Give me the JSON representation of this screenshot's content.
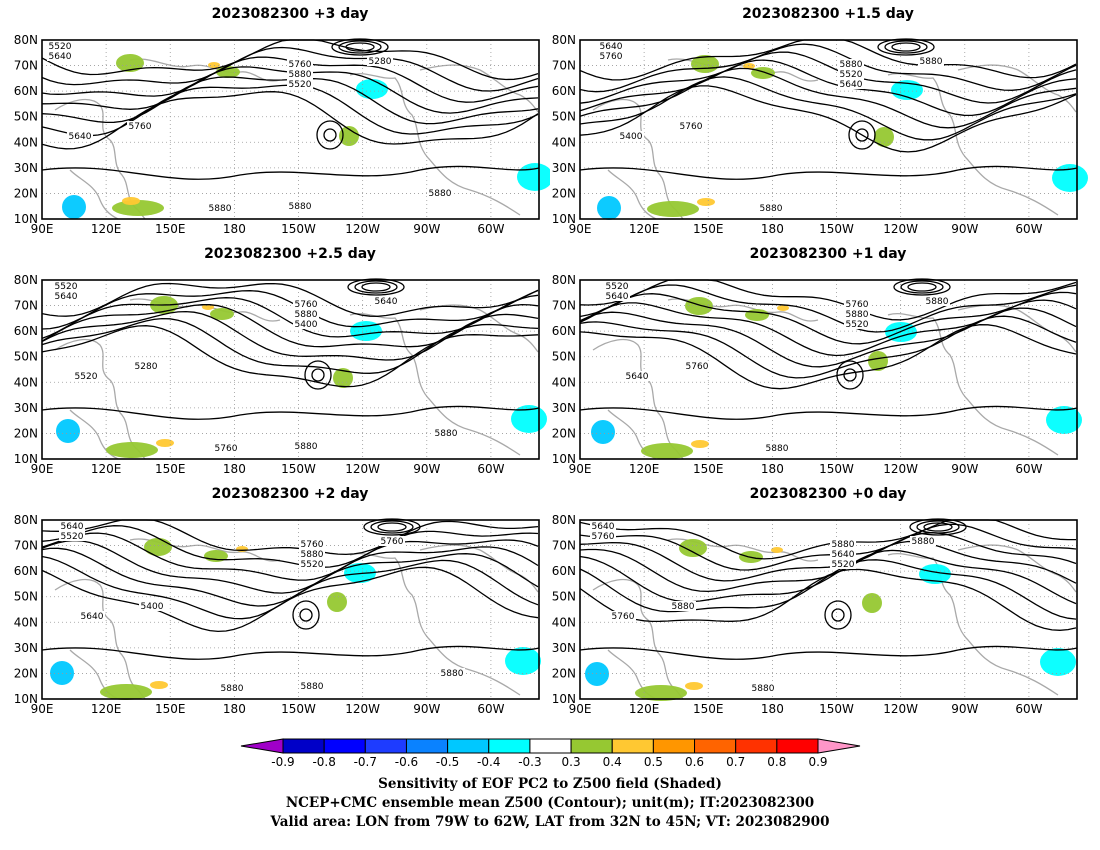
{
  "panels": [
    {
      "id": "p3",
      "title": "2023082300 +3 day",
      "contour_labels": [
        "5520",
        "5640",
        "5760",
        "5880",
        "5520",
        "5640",
        "5760",
        "5280",
        "5880",
        "5880",
        "5880"
      ]
    },
    {
      "id": "p15",
      "title": "2023082300 +1.5 day",
      "contour_labels": [
        "5640",
        "5760",
        "5880",
        "5520",
        "5640",
        "5400",
        "5760",
        "5880",
        "5880"
      ]
    },
    {
      "id": "p25",
      "title": "2023082300 +2.5 day",
      "contour_labels": [
        "5520",
        "5640",
        "5760",
        "5880",
        "5400",
        "5520",
        "5280",
        "5640",
        "5760",
        "5880",
        "5880"
      ]
    },
    {
      "id": "p1",
      "title": "2023082300 +1 day",
      "contour_labels": [
        "5520",
        "5640",
        "5760",
        "5880",
        "5520",
        "5640",
        "5760",
        "5880",
        "5880"
      ]
    },
    {
      "id": "p2",
      "title": "2023082300 +2 day",
      "contour_labels": [
        "5640",
        "5520",
        "5760",
        "5880",
        "5520",
        "5640",
        "5400",
        "5760",
        "5880",
        "5880",
        "5880"
      ]
    },
    {
      "id": "p0",
      "title": "2023082300 +0 day",
      "contour_labels": [
        "5640",
        "5760",
        "5880",
        "5640",
        "5520",
        "5760",
        "5880",
        "5880",
        "5880"
      ]
    }
  ],
  "axes": {
    "lat_labels": [
      "80N",
      "70N",
      "60N",
      "50N",
      "40N",
      "30N",
      "20N",
      "10N"
    ],
    "lon_labels": [
      "90E",
      "120E",
      "150E",
      "180",
      "150W",
      "120W",
      "90W",
      "60W"
    ]
  },
  "colorbar": {
    "ticks": [
      "-0.9",
      "-0.8",
      "-0.7",
      "-0.6",
      "-0.5",
      "-0.4",
      "-0.3",
      "0.3",
      "0.4",
      "0.5",
      "0.6",
      "0.7",
      "0.8",
      "0.9"
    ],
    "colors": [
      "#a000c8",
      "#0000c8",
      "#0000ff",
      "#1e3cff",
      "#0a82ff",
      "#00c8ff",
      "#00ffff",
      "#ffffff",
      "#96c832",
      "#ffc832",
      "#ff9600",
      "#ff6400",
      "#ff3200",
      "#ff0000",
      "#ff96c8"
    ]
  },
  "footer": {
    "line1": "Sensitivity of EOF PC2 to Z500 field (Shaded)",
    "line2": "NCEP+CMC ensemble mean Z500 (Contour); unit(m); IT:2023082300",
    "line3": "Valid area: LON from 79W to 62W, LAT from 32N to 45N; VT: 2023082900"
  }
}
